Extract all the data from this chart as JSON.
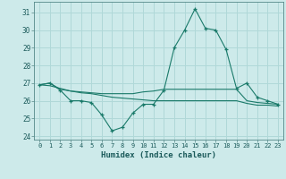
{
  "xlabel": "Humidex (Indice chaleur)",
  "background_color": "#cdeaea",
  "grid_color": "#b0d8d8",
  "line_color": "#1a7a6a",
  "x": [
    0,
    1,
    2,
    3,
    4,
    5,
    6,
    7,
    8,
    9,
    10,
    11,
    12,
    13,
    14,
    15,
    16,
    17,
    18,
    19,
    20,
    21,
    22,
    23
  ],
  "series1": [
    26.9,
    27.0,
    26.6,
    26.0,
    26.0,
    25.9,
    25.2,
    24.3,
    24.5,
    25.3,
    25.8,
    25.8,
    26.6,
    29.0,
    30.0,
    31.2,
    30.1,
    30.0,
    28.9,
    26.7,
    27.0,
    26.2,
    26.0,
    25.8
  ],
  "series2": [
    26.9,
    27.0,
    26.65,
    26.55,
    26.5,
    26.45,
    26.4,
    26.4,
    26.4,
    26.4,
    26.5,
    26.55,
    26.65,
    26.65,
    26.65,
    26.65,
    26.65,
    26.65,
    26.65,
    26.65,
    26.0,
    25.9,
    25.85,
    25.8
  ],
  "series3": [
    26.9,
    26.85,
    26.7,
    26.55,
    26.45,
    26.4,
    26.3,
    26.2,
    26.15,
    26.1,
    26.05,
    26.0,
    26.0,
    26.0,
    26.0,
    26.0,
    26.0,
    26.0,
    26.0,
    26.0,
    25.85,
    25.75,
    25.75,
    25.7
  ],
  "ylim": [
    23.8,
    31.6
  ],
  "yticks": [
    24,
    25,
    26,
    27,
    28,
    29,
    30,
    31
  ],
  "xlim": [
    -0.5,
    23.5
  ],
  "xtick_labels": [
    "0",
    "1",
    "2",
    "3",
    "4",
    "5",
    "6",
    "7",
    "8",
    "9",
    "10",
    "11",
    "12",
    "13",
    "14",
    "15",
    "16",
    "17",
    "18",
    "19",
    "20",
    "21",
    "22",
    "23"
  ]
}
